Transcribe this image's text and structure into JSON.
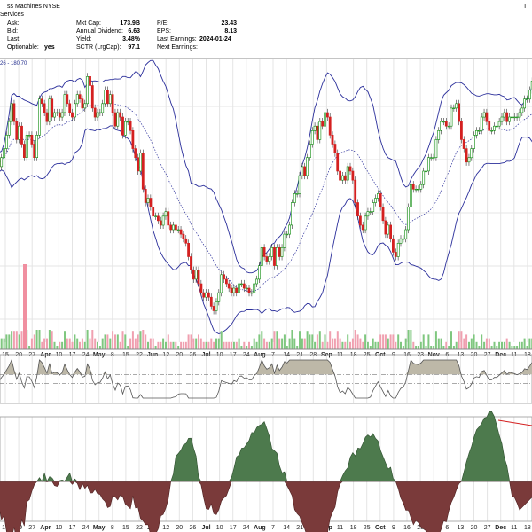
{
  "header": {
    "title_fragment": "ss Machines  NYSE",
    "title_right_fragment": "T",
    "subtitle_fragment": "Services",
    "col1": [
      {
        "label": "Ask:",
        "value": ""
      },
      {
        "label": "Bid:",
        "value": ""
      },
      {
        "label": "Last:",
        "value": ""
      },
      {
        "label": "Optionable:",
        "value": "yes"
      }
    ],
    "col2": [
      {
        "label": "Mkt Cap:",
        "value": "173.9B"
      },
      {
        "label": "Annual Dividend:",
        "value": "6.63"
      },
      {
        "label": "Yield:",
        "value": "3.48%"
      },
      {
        "label": "SCTR (LrgCap):",
        "value": "97.1"
      }
    ],
    "col3": [
      {
        "label": "P/E:",
        "value": "23.43"
      },
      {
        "label": "EPS:",
        "value": "8.13"
      },
      {
        "label": "Last Earnings:",
        "value": "2024-01-24"
      },
      {
        "label": "Next Earnings:",
        "value": ""
      }
    ]
  },
  "price_panel": {
    "band_label": "26 - 180.70"
  },
  "colors": {
    "up": "#0a8a0a",
    "down": "#d42020",
    "band": "#2b2f9b",
    "ma": "#2b2f9b",
    "vol_up": "#7fc77f",
    "vol_down": "#f0a0b0",
    "hist_pos": "#4d7a4d",
    "hist_neg": "#7a3a3a",
    "osc_line": "#555555",
    "sig_line": "#d42020",
    "grid": "#e4e4e4"
  },
  "chart_data": {
    "type": "line",
    "title": "",
    "xlabel": "",
    "ylabel": "",
    "legend": "none",
    "grid": true,
    "x_tick_labels": [
      "15",
      "20",
      "27",
      "Apr",
      "10",
      "17",
      "24",
      "May",
      "8",
      "15",
      "22",
      "Jun",
      "12",
      "20",
      "26",
      "Jul",
      "10",
      "17",
      "24",
      "Aug",
      "7",
      "14",
      "21",
      "28",
      "Sep",
      "11",
      "18",
      "25",
      "Oct",
      "9",
      "16",
      "23",
      "Nov",
      "6",
      "13",
      "20",
      "27",
      "Dec",
      "11",
      "18"
    ],
    "x_tick_bold": [
      "Apr",
      "May",
      "Jun",
      "Jul",
      "Aug",
      "Sep",
      "Oct",
      "Nov",
      "Dec"
    ],
    "series": [
      {
        "values": [
          0.66,
          0.64,
          0.66,
          0.68,
          0.71,
          0.74,
          0.78,
          0.74,
          0.7,
          0.73,
          0.69,
          0.66,
          0.71,
          0.71,
          0.69,
          0.66,
          0.71,
          0.79,
          0.78,
          0.76,
          0.74,
          0.79,
          0.75,
          0.76,
          0.76,
          0.75,
          0.76,
          0.8,
          0.78,
          0.76,
          0.75,
          0.78,
          0.8,
          0.79,
          0.77,
          0.78,
          0.84,
          0.82,
          0.77,
          0.75,
          0.76,
          0.76,
          0.78,
          0.81,
          0.78,
          0.8,
          0.76,
          0.73,
          0.76,
          0.75,
          0.71,
          0.74,
          0.74,
          0.72,
          0.68,
          0.66,
          0.63,
          0.67,
          0.59,
          0.56,
          0.57,
          0.55,
          0.53,
          0.53,
          0.52,
          0.51,
          0.53,
          0.54,
          0.51,
          0.5,
          0.51,
          0.5,
          0.5,
          0.49,
          0.48,
          0.47,
          0.44,
          0.41,
          0.39,
          0.41,
          0.38,
          0.36,
          0.35,
          0.36,
          0.35,
          0.33,
          0.32,
          0.34,
          0.36,
          0.4,
          0.39,
          0.38,
          0.37,
          0.36,
          0.37,
          0.36,
          0.38,
          0.38,
          0.37,
          0.37,
          0.36,
          0.36,
          0.38,
          0.39,
          0.42,
          0.46,
          0.44,
          0.43,
          0.44,
          0.46,
          0.42,
          0.46,
          0.44,
          0.46,
          0.49,
          0.49,
          0.51,
          0.56,
          0.58,
          0.58,
          0.62,
          0.64,
          0.62,
          0.66,
          0.69,
          0.72,
          0.73,
          0.7,
          0.74,
          0.73,
          0.76,
          0.75,
          0.71,
          0.69,
          0.67,
          0.63,
          0.61,
          0.62,
          0.61,
          0.64,
          0.63,
          0.61,
          0.56,
          0.53,
          0.51,
          0.5,
          0.53,
          0.54,
          0.54,
          0.56,
          0.57,
          0.58,
          0.55,
          0.52,
          0.49,
          0.51,
          0.48,
          0.45,
          0.44,
          0.47,
          0.48,
          0.48,
          0.5,
          0.55,
          0.6,
          0.59,
          0.59,
          0.59,
          0.6,
          0.63,
          0.63,
          0.66,
          0.66,
          0.66,
          0.7,
          0.72,
          0.74,
          0.74,
          0.73,
          0.73,
          0.77,
          0.77,
          0.78,
          0.74,
          0.7,
          0.68,
          0.65,
          0.66,
          0.68,
          0.71,
          0.72,
          0.72,
          0.75,
          0.76,
          0.74,
          0.72,
          0.72,
          0.73,
          0.73,
          0.74,
          0.75,
          0.76,
          0.74,
          0.75,
          0.75,
          0.75,
          0.75,
          0.76,
          0.77,
          0.79,
          0.79,
          0.81,
          0.83,
          0.81,
          0.8,
          0.84,
          0.82,
          0.81,
          0.79
        ]
      },
      {
        "values": [
          -9.6,
          -18.6,
          -27.7,
          -24.8,
          -36.6,
          -41.1,
          -40.8,
          -33.3,
          -42.6,
          -38.6,
          -27.7,
          -32.4,
          -14.8,
          -13.3,
          -7.1,
          -2.2,
          0.0,
          2.8,
          0.0,
          6.0,
          -0.4,
          3.5,
          2.6,
          -3.0,
          -3.6,
          0.6,
          1.1,
          0.3,
          3.1,
          6.1,
          -2.1,
          1.8,
          -1.4,
          -6.0,
          -1.5,
          -5.0,
          -2.7,
          -8.3,
          -8.3,
          -5.7,
          -8.9,
          -9.4,
          -12.8,
          -14.6,
          -19.0,
          -18.1,
          -10.4,
          -11.2,
          -13.4,
          -9.8,
          -11.1,
          -16.4,
          -18.0,
          -19.9,
          -10.5,
          -19.3,
          -18.8,
          -26.9,
          -28.6,
          -31.5,
          -31.5,
          -38.8,
          -40.2,
          -38.0,
          -34.6,
          -25.0,
          -24.0,
          -19.5,
          -13.0,
          0.0,
          5.4,
          18.3,
          20.4,
          22.7,
          26.8,
          27.6,
          31.4,
          31.5,
          24.3,
          18.4,
          3.2,
          -2.3,
          -11.9,
          -19.9,
          -20.3,
          -16.3,
          -23.4,
          -24.1,
          -20.5,
          -14.1,
          -12.0,
          -10.3,
          -5.4,
          3.0,
          9.6,
          17.9,
          19.3,
          24.2,
          24.5,
          27.3,
          30.0,
          35.6,
          35.4,
          39.3,
          40.7,
          41.7,
          43.5,
          38.4,
          33.0,
          23.8,
          22.4,
          20.6,
          11.4,
          6.2,
          7.0,
          -3.1,
          -6.7,
          -10.3,
          -20.5,
          -23.4,
          -25.3,
          -30.3,
          -34.5,
          -40.2,
          -38.3,
          -41.9,
          -40.1,
          -47.9,
          -47.6,
          -43.7,
          -41.7,
          -37.4,
          -27.0,
          -22.3,
          -18.6,
          -7.4,
          -1.7,
          4.2,
          7.6,
          10.0,
          17.6,
          20.9,
          18.6,
          24.3,
          23.8,
          27.7,
          32.2,
          33.9,
          32.4,
          34.9,
          31.4,
          29.5,
          22.6,
          18.0,
          13.5,
          9.0,
          10.3,
          2.2,
          0.0,
          -5.3,
          -12.0,
          -15.8,
          -20.9,
          -21.0,
          -26.3,
          -31.5,
          -28.3,
          -30.0,
          -33.1,
          -34.6,
          -35.9,
          -39.0,
          -41.9,
          -43.2,
          -41.1,
          -39.3,
          -34.6,
          -28.5,
          -29.4,
          -21.3,
          -15.2,
          -11.3,
          -6.1,
          -1.6,
          0.0,
          7.1,
          14.2,
          20.5,
          25.5,
          32.2,
          37.6,
          39.7,
          42.3,
          46.2,
          46.7,
          51.1,
          50.8,
          47.3,
          40.7,
          33.6,
          27.6,
          17.0,
          11.4,
          0.6,
          -10.3,
          -11.6,
          -15.6,
          -20.7
        ]
      }
    ]
  }
}
